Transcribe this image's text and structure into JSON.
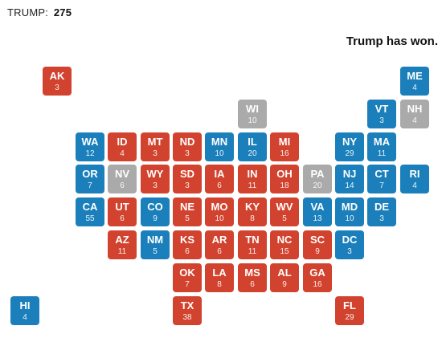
{
  "header": {
    "label": "TRUMP:",
    "count": "275"
  },
  "status_text": "Trump has won.",
  "colors": {
    "democrat": "#1a7fba",
    "republican": "#d2432f",
    "undecided": "#aaaaaa"
  },
  "states": [
    {
      "abbr": "AK",
      "ev": "3",
      "party": "R"
    },
    {
      "abbr": "ME",
      "ev": "4",
      "party": "D"
    },
    {
      "abbr": "WI",
      "ev": "10",
      "party": "U"
    },
    {
      "abbr": "VT",
      "ev": "3",
      "party": "D"
    },
    {
      "abbr": "NH",
      "ev": "4",
      "party": "U"
    },
    {
      "abbr": "WA",
      "ev": "12",
      "party": "D"
    },
    {
      "abbr": "ID",
      "ev": "4",
      "party": "R"
    },
    {
      "abbr": "MT",
      "ev": "3",
      "party": "R"
    },
    {
      "abbr": "ND",
      "ev": "3",
      "party": "R"
    },
    {
      "abbr": "MN",
      "ev": "10",
      "party": "D"
    },
    {
      "abbr": "IL",
      "ev": "20",
      "party": "D"
    },
    {
      "abbr": "MI",
      "ev": "16",
      "party": "R"
    },
    {
      "abbr": "NY",
      "ev": "29",
      "party": "D"
    },
    {
      "abbr": "MA",
      "ev": "11",
      "party": "D"
    },
    {
      "abbr": "OR",
      "ev": "7",
      "party": "D"
    },
    {
      "abbr": "NV",
      "ev": "6",
      "party": "U"
    },
    {
      "abbr": "WY",
      "ev": "3",
      "party": "R"
    },
    {
      "abbr": "SD",
      "ev": "3",
      "party": "R"
    },
    {
      "abbr": "IA",
      "ev": "6",
      "party": "R"
    },
    {
      "abbr": "IN",
      "ev": "11",
      "party": "R"
    },
    {
      "abbr": "OH",
      "ev": "18",
      "party": "R"
    },
    {
      "abbr": "PA",
      "ev": "20",
      "party": "U"
    },
    {
      "abbr": "NJ",
      "ev": "14",
      "party": "D"
    },
    {
      "abbr": "CT",
      "ev": "7",
      "party": "D"
    },
    {
      "abbr": "RI",
      "ev": "4",
      "party": "D"
    },
    {
      "abbr": "CA",
      "ev": "55",
      "party": "D"
    },
    {
      "abbr": "UT",
      "ev": "6",
      "party": "R"
    },
    {
      "abbr": "CO",
      "ev": "9",
      "party": "D"
    },
    {
      "abbr": "NE",
      "ev": "5",
      "party": "R"
    },
    {
      "abbr": "MO",
      "ev": "10",
      "party": "R"
    },
    {
      "abbr": "KY",
      "ev": "8",
      "party": "R"
    },
    {
      "abbr": "WV",
      "ev": "5",
      "party": "R"
    },
    {
      "abbr": "VA",
      "ev": "13",
      "party": "D"
    },
    {
      "abbr": "MD",
      "ev": "10",
      "party": "D"
    },
    {
      "abbr": "DE",
      "ev": "3",
      "party": "D"
    },
    {
      "abbr": "AZ",
      "ev": "11",
      "party": "R"
    },
    {
      "abbr": "NM",
      "ev": "5",
      "party": "D"
    },
    {
      "abbr": "KS",
      "ev": "6",
      "party": "R"
    },
    {
      "abbr": "AR",
      "ev": "6",
      "party": "R"
    },
    {
      "abbr": "TN",
      "ev": "11",
      "party": "R"
    },
    {
      "abbr": "NC",
      "ev": "15",
      "party": "R"
    },
    {
      "abbr": "SC",
      "ev": "9",
      "party": "R"
    },
    {
      "abbr": "DC",
      "ev": "3",
      "party": "D"
    },
    {
      "abbr": "OK",
      "ev": "7",
      "party": "R"
    },
    {
      "abbr": "LA",
      "ev": "8",
      "party": "R"
    },
    {
      "abbr": "MS",
      "ev": "6",
      "party": "R"
    },
    {
      "abbr": "AL",
      "ev": "9",
      "party": "R"
    },
    {
      "abbr": "GA",
      "ev": "16",
      "party": "R"
    },
    {
      "abbr": "HI",
      "ev": "4",
      "party": "D"
    },
    {
      "abbr": "TX",
      "ev": "38",
      "party": "R"
    },
    {
      "abbr": "FL",
      "ev": "29",
      "party": "R"
    }
  ]
}
